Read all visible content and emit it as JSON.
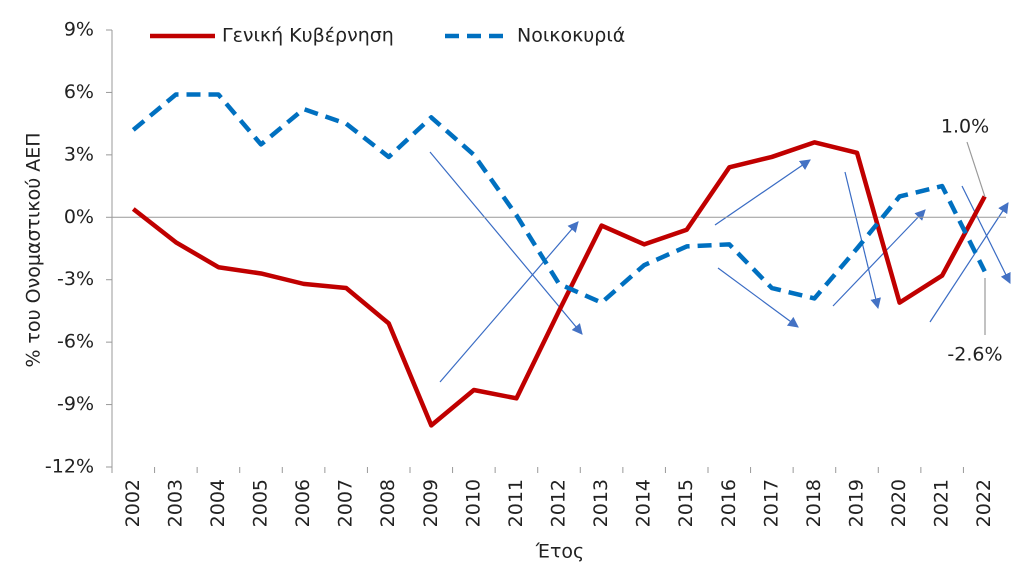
{
  "chart_data": {
    "type": "line",
    "y_label": "% του Ονομαστικού ΑΕΠ",
    "x_label": "Έτος",
    "categories": [
      "2002",
      "2003",
      "2004",
      "2005",
      "2006",
      "2007",
      "2008",
      "2009",
      "2010",
      "2011",
      "2012",
      "2013",
      "2014",
      "2015",
      "2016",
      "2017",
      "2018",
      "2019",
      "2020",
      "2021",
      "2022"
    ],
    "series": [
      {
        "name": "Γενική Κυβέρνηση",
        "color": "#c00000",
        "dash": false,
        "values": [
          0.4,
          -1.2,
          -2.4,
          -2.7,
          -3.2,
          -3.4,
          -5.1,
          -10.0,
          -8.3,
          -8.7,
          -4.5,
          -0.4,
          -1.3,
          -0.6,
          2.4,
          2.9,
          3.6,
          3.1,
          -4.1,
          -2.8,
          1.0
        ],
        "value_labels": [
          null,
          null,
          null,
          null,
          null,
          null,
          null,
          null,
          null,
          null,
          null,
          null,
          null,
          null,
          null,
          null,
          null,
          null,
          null,
          null,
          "1.0%"
        ]
      },
      {
        "name": "Νοικοκυριά",
        "color": "#0070c0",
        "dash": true,
        "values": [
          4.2,
          5.9,
          5.9,
          3.5,
          5.2,
          4.5,
          2.9,
          4.8,
          3.0,
          0.1,
          -3.2,
          -4.1,
          -2.3,
          -1.4,
          -1.3,
          -3.4,
          -3.9,
          -1.5,
          1.0,
          1.5,
          -2.6
        ],
        "value_labels": [
          null,
          null,
          null,
          null,
          null,
          null,
          null,
          null,
          null,
          null,
          null,
          null,
          null,
          null,
          null,
          null,
          null,
          null,
          null,
          null,
          "-2.6%"
        ]
      }
    ],
    "ylim": [
      -12,
      9
    ],
    "yticks": [
      {
        "value": -12,
        "label": "-12%"
      },
      {
        "value": -9,
        "label": "-9%"
      },
      {
        "value": -6,
        "label": "-6%"
      },
      {
        "value": -3,
        "label": "-3%"
      },
      {
        "value": 0,
        "label": "0%"
      },
      {
        "value": 3,
        "label": "3%"
      },
      {
        "value": 6,
        "label": "6%"
      },
      {
        "value": 9,
        "label": "9%"
      }
    ],
    "grid": false
  }
}
